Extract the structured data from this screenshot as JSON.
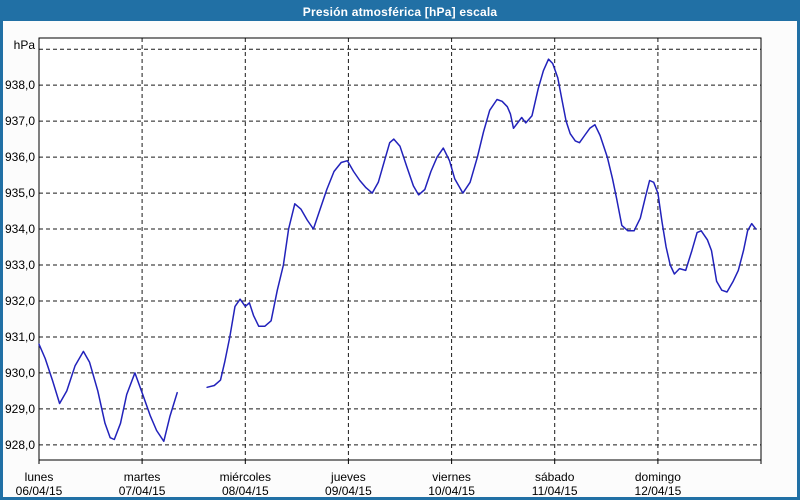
{
  "window": {
    "title": "Presión atmosférica [hPa] escala"
  },
  "colors": {
    "frame": "#2170a5",
    "title_text": "#ffffff",
    "background": "#fcfcfc",
    "plot_background": "#ffffff",
    "grid": "#1a1a1a",
    "axis": "#000000",
    "label_text": "#000000",
    "line": "#2222bb"
  },
  "chart_data": {
    "type": "line",
    "title": "Presión atmosférica [hPa] escala",
    "y_unit_label": "hPa",
    "xlabel": "",
    "ylabel": "hPa",
    "grid": "dashed",
    "legend": "none",
    "ylim": [
      927.58,
      939.31
    ],
    "xlim_days": [
      0,
      7
    ],
    "y_gridline_values": [
      928,
      929,
      930,
      931,
      932,
      933,
      934,
      935,
      936,
      937,
      938,
      939
    ],
    "y_ticks": [
      {
        "value": 938,
        "label": "938,0"
      },
      {
        "value": 937,
        "label": "937,0"
      },
      {
        "value": 936,
        "label": "936,0"
      },
      {
        "value": 935,
        "label": "935,0"
      },
      {
        "value": 934,
        "label": "934,0"
      },
      {
        "value": 933,
        "label": "933,0"
      },
      {
        "value": 932,
        "label": "932,0"
      },
      {
        "value": 931,
        "label": "931,0"
      },
      {
        "value": 930,
        "label": "930,0"
      },
      {
        "value": 929,
        "label": "929,0"
      },
      {
        "value": 928,
        "label": "928,0"
      }
    ],
    "x_gridline_days": [
      1,
      2,
      3,
      4,
      5,
      6
    ],
    "x_tick_days": [
      0,
      1,
      2,
      3,
      4,
      5,
      6,
      7
    ],
    "x_day_labels": [
      {
        "day": 0,
        "name": "lunes",
        "date": "06/04/15"
      },
      {
        "day": 1,
        "name": "martes",
        "date": "07/04/15"
      },
      {
        "day": 2,
        "name": "miércoles",
        "date": "08/04/15"
      },
      {
        "day": 3,
        "name": "jueves",
        "date": "09/04/15"
      },
      {
        "day": 4,
        "name": "viernes",
        "date": "10/04/15"
      },
      {
        "day": 5,
        "name": "sábado",
        "date": "11/04/15"
      },
      {
        "day": 6,
        "name": "domingo",
        "date": "12/04/15"
      }
    ],
    "series": [
      {
        "name": "Presión atmosférica",
        "unit": "hPa",
        "segments": [
          [
            [
              0,
              930.8
            ],
            [
              0.06,
              930.4
            ],
            [
              0.13,
              929.8
            ],
            [
              0.2,
              929.15
            ],
            [
              0.27,
              929.5
            ],
            [
              0.35,
              930.2
            ],
            [
              0.43,
              930.6
            ],
            [
              0.49,
              930.3
            ],
            [
              0.57,
              929.5
            ],
            [
              0.64,
              928.6
            ],
            [
              0.69,
              928.2
            ],
            [
              0.73,
              928.15
            ],
            [
              0.79,
              928.6
            ],
            [
              0.85,
              929.4
            ],
            [
              0.93,
              930.0
            ],
            [
              1.0,
              929.45
            ],
            [
              1.08,
              928.8
            ],
            [
              1.14,
              928.4
            ],
            [
              1.21,
              928.1
            ],
            [
              1.27,
              928.8
            ],
            [
              1.34,
              929.45
            ]
          ],
          [
            [
              1.63,
              929.6
            ],
            [
              1.7,
              929.65
            ],
            [
              1.76,
              929.8
            ],
            [
              1.8,
              930.3
            ],
            [
              1.85,
              931.0
            ],
            [
              1.9,
              931.85
            ],
            [
              1.95,
              932.05
            ],
            [
              2.0,
              931.85
            ],
            [
              2.04,
              931.95
            ],
            [
              2.08,
              931.6
            ],
            [
              2.13,
              931.3
            ],
            [
              2.19,
              931.3
            ],
            [
              2.25,
              931.45
            ],
            [
              2.31,
              932.3
            ],
            [
              2.37,
              933.0
            ],
            [
              2.42,
              934.0
            ],
            [
              2.48,
              934.7
            ],
            [
              2.54,
              934.55
            ],
            [
              2.6,
              934.25
            ],
            [
              2.66,
              934.0
            ],
            [
              2.72,
              934.5
            ],
            [
              2.79,
              935.1
            ],
            [
              2.86,
              935.6
            ],
            [
              2.93,
              935.85
            ],
            [
              2.99,
              935.9
            ],
            [
              3.05,
              935.6
            ],
            [
              3.11,
              935.35
            ],
            [
              3.17,
              935.15
            ],
            [
              3.23,
              935.0
            ],
            [
              3.29,
              935.3
            ],
            [
              3.35,
              935.9
            ],
            [
              3.4,
              936.4
            ],
            [
              3.44,
              936.5
            ],
            [
              3.5,
              936.3
            ],
            [
              3.57,
              935.7
            ],
            [
              3.63,
              935.2
            ],
            [
              3.68,
              934.95
            ],
            [
              3.74,
              935.1
            ],
            [
              3.8,
              935.6
            ],
            [
              3.86,
              936.0
            ],
            [
              3.92,
              936.25
            ],
            [
              3.98,
              935.9
            ],
            [
              4.03,
              935.4
            ],
            [
              4.11,
              935.0
            ],
            [
              4.18,
              935.3
            ],
            [
              4.25,
              936.0
            ],
            [
              4.31,
              936.7
            ],
            [
              4.37,
              937.3
            ],
            [
              4.44,
              937.6
            ],
            [
              4.49,
              937.55
            ],
            [
              4.54,
              937.4
            ],
            [
              4.57,
              937.2
            ],
            [
              4.6,
              936.8
            ],
            [
              4.68,
              937.1
            ],
            [
              4.72,
              936.95
            ],
            [
              4.78,
              937.15
            ],
            [
              4.84,
              937.9
            ],
            [
              4.89,
              938.4
            ],
            [
              4.94,
              938.72
            ],
            [
              4.98,
              938.6
            ],
            [
              5.03,
              938.2
            ],
            [
              5.07,
              937.6
            ],
            [
              5.11,
              937.0
            ],
            [
              5.15,
              936.65
            ],
            [
              5.2,
              936.45
            ],
            [
              5.24,
              936.4
            ],
            [
              5.29,
              936.6
            ],
            [
              5.34,
              936.8
            ],
            [
              5.39,
              936.9
            ],
            [
              5.44,
              936.6
            ],
            [
              5.51,
              936.0
            ],
            [
              5.56,
              935.4
            ],
            [
              5.6,
              934.85
            ],
            [
              5.65,
              934.1
            ],
            [
              5.71,
              933.95
            ],
            [
              5.77,
              933.95
            ],
            [
              5.83,
              934.3
            ],
            [
              5.88,
              934.9
            ],
            [
              5.92,
              935.35
            ],
            [
              5.96,
              935.3
            ],
            [
              6.0,
              935.0
            ],
            [
              6.04,
              934.2
            ],
            [
              6.08,
              933.5
            ],
            [
              6.12,
              933.0
            ],
            [
              6.16,
              932.75
            ],
            [
              6.21,
              932.9
            ],
            [
              6.27,
              932.85
            ],
            [
              6.33,
              933.4
            ],
            [
              6.38,
              933.9
            ],
            [
              6.42,
              933.95
            ],
            [
              6.48,
              933.7
            ],
            [
              6.52,
              933.4
            ],
            [
              6.57,
              932.55
            ],
            [
              6.62,
              932.3
            ],
            [
              6.67,
              932.25
            ],
            [
              6.73,
              932.55
            ],
            [
              6.78,
              932.85
            ],
            [
              6.83,
              933.4
            ],
            [
              6.87,
              933.95
            ],
            [
              6.91,
              934.15
            ],
            [
              6.95,
              934.0
            ]
          ]
        ]
      }
    ]
  }
}
